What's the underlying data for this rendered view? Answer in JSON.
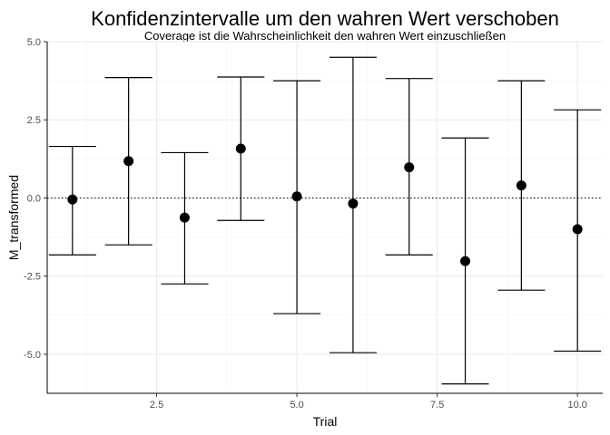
{
  "chart_data": {
    "type": "errorbar",
    "title": "Konfidenzintervalle um den wahren Wert verschoben",
    "subtitle": "Coverage ist die Wahrscheinlichkeit den wahren Wert einzuschließen",
    "xlabel": "Trial",
    "ylabel": "M_transformed",
    "xlim": [
      0.55,
      10.45
    ],
    "ylim": [
      -6.25,
      5.0
    ],
    "x_ticks": [
      2.5,
      5.0,
      7.5,
      10.0
    ],
    "x_tick_labels": [
      "2.5",
      "5.0",
      "7.5",
      "10.0"
    ],
    "y_ticks": [
      -5.0,
      -2.5,
      0.0,
      2.5,
      5.0
    ],
    "y_tick_labels": [
      "-5.0",
      "-2.5",
      "0.0",
      "2.5",
      "5.0"
    ],
    "reference_line": 0.0,
    "grid": true,
    "points": [
      {
        "x": 1,
        "y": -0.05,
        "lower": -1.82,
        "upper": 1.65
      },
      {
        "x": 2,
        "y": 1.18,
        "lower": -1.5,
        "upper": 3.85
      },
      {
        "x": 3,
        "y": -0.63,
        "lower": -2.75,
        "upper": 1.45
      },
      {
        "x": 4,
        "y": 1.58,
        "lower": -0.72,
        "upper": 3.87
      },
      {
        "x": 5,
        "y": 0.05,
        "lower": -3.7,
        "upper": 3.75
      },
      {
        "x": 6,
        "y": -0.18,
        "lower": -4.95,
        "upper": 4.5
      },
      {
        "x": 7,
        "y": 0.98,
        "lower": -1.82,
        "upper": 3.82
      },
      {
        "x": 8,
        "y": -2.02,
        "lower": -5.95,
        "upper": 1.92
      },
      {
        "x": 9,
        "y": 0.4,
        "lower": -2.95,
        "upper": 3.75
      },
      {
        "x": 10,
        "y": -1.0,
        "lower": -4.9,
        "upper": 2.82
      }
    ]
  }
}
